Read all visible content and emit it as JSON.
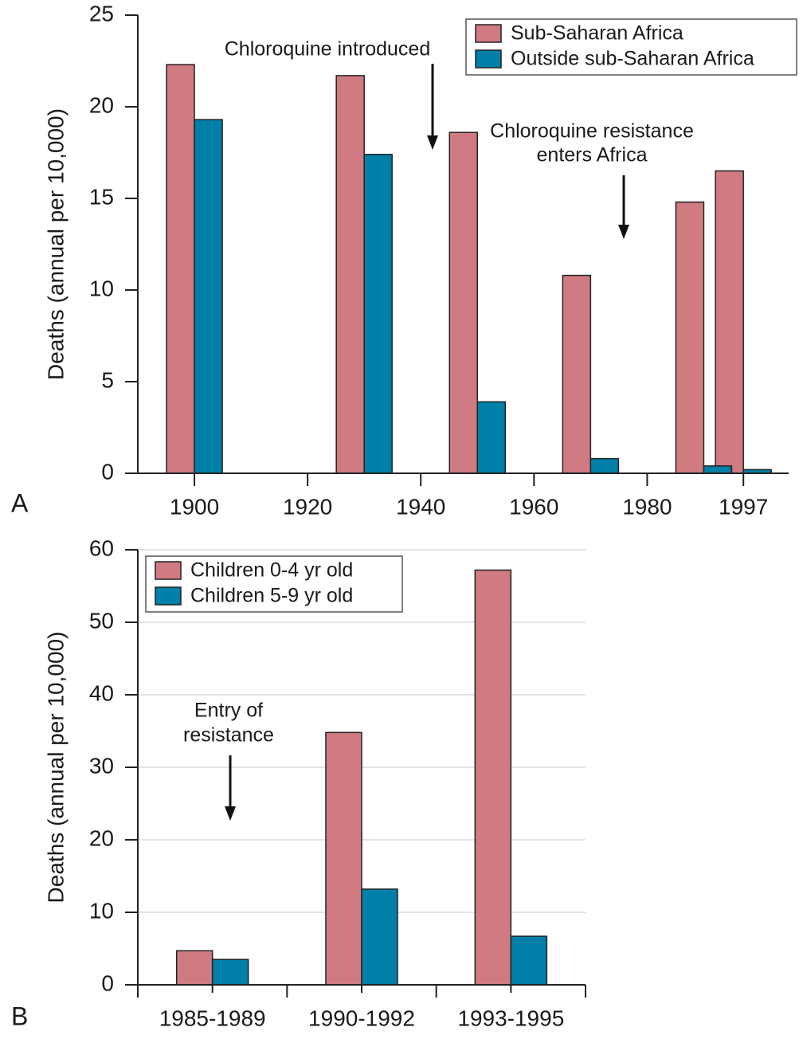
{
  "chart_data": [
    {
      "type": "bar",
      "panel_label": "A",
      "ylabel": "Deaths (annual per 10,000)",
      "x": [
        1900,
        1930,
        1950,
        1970,
        1990,
        1997
      ],
      "series": [
        {
          "name": "Sub-Saharan Africa",
          "color": "#d07a82",
          "values": [
            22.3,
            21.7,
            18.6,
            10.8,
            14.8,
            16.5
          ]
        },
        {
          "name": "Outside sub-Saharan Africa",
          "color": "#0080a8",
          "values": [
            19.3,
            17.4,
            3.9,
            0.8,
            0.4,
            0.2
          ]
        }
      ],
      "xlim": [
        1890,
        2005
      ],
      "xticks": [
        1900,
        1920,
        1940,
        1960,
        1980,
        1997
      ],
      "ylim": [
        0,
        25
      ],
      "yticks": [
        0,
        5,
        10,
        15,
        20,
        25
      ],
      "grid": false,
      "legend": "upper right",
      "annotations": [
        {
          "text": [
            "Chloroquine  introduced"
          ]
        },
        {
          "text": [
            "Chloroquine resistance",
            "enters Africa"
          ]
        }
      ]
    },
    {
      "type": "bar",
      "panel_label": "B",
      "ylabel": "Deaths (annual per 10,000)",
      "categories": [
        "1985-1989",
        "1990-1992",
        "1993-1995"
      ],
      "series": [
        {
          "name": "Children 0-4 yr old",
          "color": "#d07a82",
          "values": [
            4.7,
            34.8,
            57.2
          ]
        },
        {
          "name": "Children 5-9 yr old",
          "color": "#0080a8",
          "values": [
            3.5,
            13.2,
            6.7
          ]
        }
      ],
      "ylim": [
        0,
        60
      ],
      "yticks": [
        0,
        10,
        20,
        30,
        40,
        50,
        60
      ],
      "grid": true,
      "legend": "upper left",
      "annotations": [
        {
          "text": [
            "Entry of",
            "resistance"
          ]
        }
      ]
    }
  ]
}
